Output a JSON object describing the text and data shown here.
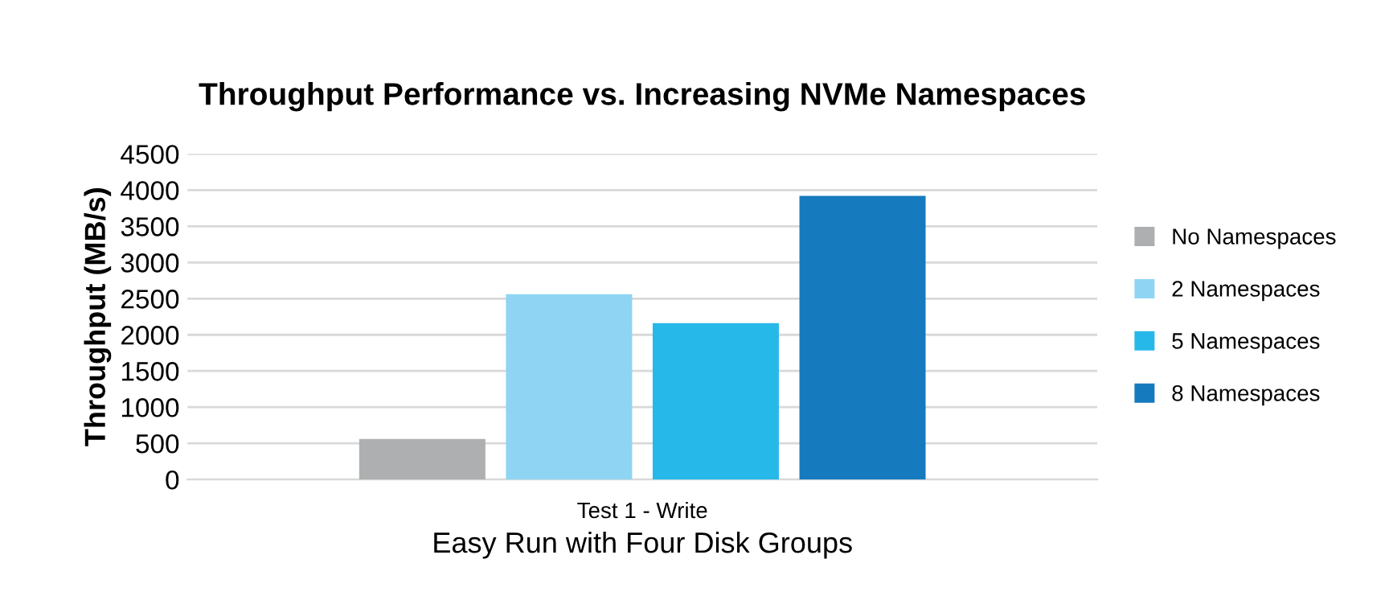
{
  "chart_data": {
    "type": "bar",
    "title": "Throughput Performance vs. Increasing NVMe Namespaces",
    "ylabel": "Throughput (MB/s)",
    "xlabel": "Easy Run with Four Disk Groups",
    "categories": [
      "Test 1 - Write"
    ],
    "series": [
      {
        "name": "No Namespaces",
        "color": "#adafb0",
        "values": [
          560
        ]
      },
      {
        "name": "2 Namespaces",
        "color": "#8fd5f3",
        "values": [
          2560
        ]
      },
      {
        "name": "5 Namespaces",
        "color": "#27b8ea",
        "values": [
          2160
        ]
      },
      {
        "name": "8 Namespaces",
        "color": "#167abf",
        "values": [
          3920
        ]
      }
    ],
    "ylim": [
      0,
      4500
    ],
    "yticks": [
      0,
      500,
      1000,
      1500,
      2000,
      2500,
      3000,
      3500,
      4000,
      4500
    ],
    "grid": "y",
    "legend": "right"
  }
}
